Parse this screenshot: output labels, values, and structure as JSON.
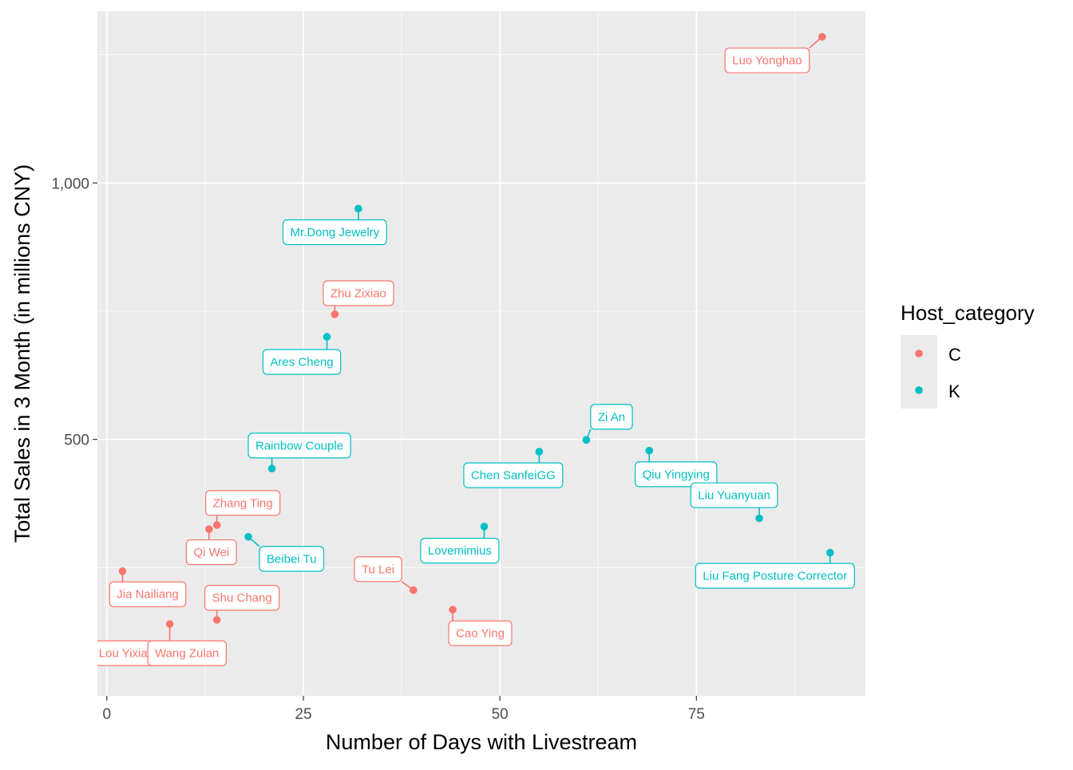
{
  "chart_data": {
    "type": "scatter",
    "xlabel": "Number of Days with Livestream",
    "ylabel": "Total Sales in 3 Month (in millions CNY)",
    "xlim": [
      -1.2,
      96.5
    ],
    "ylim": [
      0,
      1335
    ],
    "x_ticks": [
      0,
      25,
      50,
      75
    ],
    "x_tick_labels": [
      "0",
      "25",
      "50",
      "75"
    ],
    "y_ticks": [
      500,
      1000
    ],
    "y_tick_labels": [
      "500",
      "1,000"
    ],
    "grid": true,
    "legend": {
      "title": "Host_category",
      "position": "right",
      "entries": [
        {
          "label": "C",
          "color": "#F8766D"
        },
        {
          "label": "K",
          "color": "#00BFC4"
        }
      ]
    },
    "points": [
      {
        "name": "Luo Yonghao",
        "x": 91,
        "y": 1285,
        "category": "C",
        "label_x": 84,
        "label_y": 1239
      },
      {
        "name": "Mr.Dong Jewelry",
        "x": 32,
        "y": 950,
        "category": "K",
        "label_x": 29,
        "label_y": 904
      },
      {
        "name": "Zhu Zixiao",
        "x": 29,
        "y": 744,
        "category": "C",
        "label_x": 32,
        "label_y": 785
      },
      {
        "name": "Ares Cheng",
        "x": 28,
        "y": 700,
        "category": "K",
        "label_x": 24.8,
        "label_y": 651
      },
      {
        "name": "Rainbow Couple",
        "x": 21,
        "y": 443,
        "category": "K",
        "label_x": 24.5,
        "label_y": 488
      },
      {
        "name": "Zhang Ting",
        "x": 14,
        "y": 333,
        "category": "C",
        "label_x": 17.3,
        "label_y": 376
      },
      {
        "name": "Qi Wei",
        "x": 13,
        "y": 325,
        "category": "C",
        "label_x": 13.3,
        "label_y": 280
      },
      {
        "name": "Beibei Tu",
        "x": 18,
        "y": 310,
        "category": "K",
        "label_x": 23.5,
        "label_y": 267
      },
      {
        "name": "Jia Nailiang",
        "x": 2,
        "y": 243,
        "category": "C",
        "label_x": 5.2,
        "label_y": 198
      },
      {
        "name": "Shu Chang",
        "x": 14,
        "y": 148,
        "category": "C",
        "label_x": 17.2,
        "label_y": 191
      },
      {
        "name": "Lou Yixiao",
        "x": 12,
        "y": 98,
        "category": "C",
        "label_x": 2.5,
        "label_y": 83
      },
      {
        "name": "Wang Zulan",
        "x": 8,
        "y": 140,
        "category": "C",
        "label_x": 10.2,
        "label_y": 83
      },
      {
        "name": "Tu Lei",
        "x": 39,
        "y": 206,
        "category": "C",
        "label_x": 34.5,
        "label_y": 247
      },
      {
        "name": "Cao Ying",
        "x": 44,
        "y": 168,
        "category": "C",
        "label_x": 47.5,
        "label_y": 122
      },
      {
        "name": "Lovemimius",
        "x": 48,
        "y": 330,
        "category": "K",
        "label_x": 44.9,
        "label_y": 283
      },
      {
        "name": "Chen SanfeiGG",
        "x": 55,
        "y": 476,
        "category": "K",
        "label_x": 51.7,
        "label_y": 430
      },
      {
        "name": "Zi An",
        "x": 61,
        "y": 499,
        "category": "K",
        "label_x": 64.2,
        "label_y": 544
      },
      {
        "name": "Qiu Yingying",
        "x": 69,
        "y": 478,
        "category": "K",
        "label_x": 72.4,
        "label_y": 432
      },
      {
        "name": "Liu Yuanyuan",
        "x": 83,
        "y": 346,
        "category": "K",
        "label_x": 79.8,
        "label_y": 391
      },
      {
        "name": "Liu Fang Posture Corrector",
        "x": 92,
        "y": 279,
        "category": "K",
        "label_x": 85,
        "label_y": 234
      }
    ]
  }
}
